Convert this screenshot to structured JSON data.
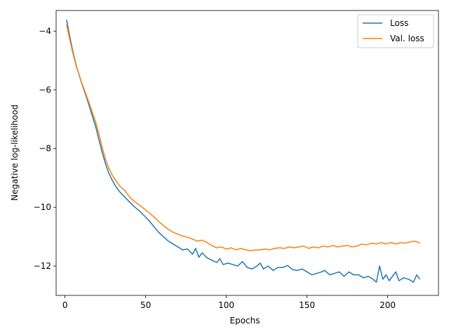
{
  "chart_data": {
    "type": "line",
    "title": "",
    "xlabel": "Epochs",
    "ylabel": "Negative log-likelihood",
    "xlim": [
      -5.5,
      231.5
    ],
    "ylim": [
      -13.0,
      -3.3
    ],
    "xticks": [
      0,
      50,
      100,
      150,
      200
    ],
    "yticks": [
      -12,
      -10,
      -8,
      -6,
      -4
    ],
    "grid": false,
    "legend_position": "top-right",
    "series": [
      {
        "name": "Loss",
        "color": "#1f77b4",
        "points": [
          [
            1,
            -3.62
          ],
          [
            3,
            -4.2
          ],
          [
            5,
            -4.72
          ],
          [
            7,
            -5.18
          ],
          [
            10,
            -5.72
          ],
          [
            13,
            -6.2
          ],
          [
            16,
            -6.72
          ],
          [
            19,
            -7.25
          ],
          [
            21,
            -7.7
          ],
          [
            23,
            -8.12
          ],
          [
            25,
            -8.5
          ],
          [
            27,
            -8.82
          ],
          [
            29,
            -9.05
          ],
          [
            31,
            -9.25
          ],
          [
            34,
            -9.48
          ],
          [
            37,
            -9.65
          ],
          [
            40,
            -9.82
          ],
          [
            43,
            -9.98
          ],
          [
            46,
            -10.12
          ],
          [
            49,
            -10.28
          ],
          [
            52,
            -10.45
          ],
          [
            55,
            -10.65
          ],
          [
            58,
            -10.85
          ],
          [
            61,
            -11.0
          ],
          [
            64,
            -11.15
          ],
          [
            67,
            -11.25
          ],
          [
            70,
            -11.35
          ],
          [
            73,
            -11.45
          ],
          [
            76,
            -11.42
          ],
          [
            79,
            -11.6
          ],
          [
            81,
            -11.4
          ],
          [
            83,
            -11.7
          ],
          [
            85,
            -11.55
          ],
          [
            88,
            -11.72
          ],
          [
            91,
            -11.8
          ],
          [
            94,
            -11.88
          ],
          [
            96,
            -11.75
          ],
          [
            98,
            -11.95
          ],
          [
            101,
            -11.9
          ],
          [
            104,
            -11.95
          ],
          [
            107,
            -12.0
          ],
          [
            110,
            -11.85
          ],
          [
            113,
            -12.05
          ],
          [
            116,
            -12.1
          ],
          [
            119,
            -12.0
          ],
          [
            121,
            -11.9
          ],
          [
            123,
            -12.1
          ],
          [
            126,
            -12.0
          ],
          [
            129,
            -12.15
          ],
          [
            132,
            -12.05
          ],
          [
            135,
            -12.05
          ],
          [
            138,
            -11.98
          ],
          [
            141,
            -12.12
          ],
          [
            144,
            -12.15
          ],
          [
            147,
            -12.1
          ],
          [
            150,
            -12.2
          ],
          [
            153,
            -12.3
          ],
          [
            156,
            -12.25
          ],
          [
            159,
            -12.2
          ],
          [
            161,
            -12.15
          ],
          [
            164,
            -12.3
          ],
          [
            167,
            -12.25
          ],
          [
            170,
            -12.2
          ],
          [
            173,
            -12.35
          ],
          [
            176,
            -12.2
          ],
          [
            179,
            -12.3
          ],
          [
            182,
            -12.3
          ],
          [
            185,
            -12.4
          ],
          [
            188,
            -12.35
          ],
          [
            191,
            -12.45
          ],
          [
            193,
            -12.55
          ],
          [
            195,
            -12.0
          ],
          [
            197,
            -12.45
          ],
          [
            199,
            -12.3
          ],
          [
            201,
            -12.5
          ],
          [
            203,
            -12.35
          ],
          [
            205,
            -12.2
          ],
          [
            207,
            -12.5
          ],
          [
            210,
            -12.4
          ],
          [
            213,
            -12.45
          ],
          [
            216,
            -12.55
          ],
          [
            218,
            -12.3
          ],
          [
            220,
            -12.45
          ]
        ]
      },
      {
        "name": "Val. loss",
        "color": "#ff7f0e",
        "points": [
          [
            1,
            -3.78
          ],
          [
            3,
            -4.3
          ],
          [
            5,
            -4.78
          ],
          [
            7,
            -5.2
          ],
          [
            10,
            -5.7
          ],
          [
            13,
            -6.15
          ],
          [
            16,
            -6.62
          ],
          [
            19,
            -7.1
          ],
          [
            21,
            -7.5
          ],
          [
            23,
            -7.95
          ],
          [
            25,
            -8.35
          ],
          [
            27,
            -8.65
          ],
          [
            29,
            -8.88
          ],
          [
            31,
            -9.05
          ],
          [
            34,
            -9.28
          ],
          [
            37,
            -9.42
          ],
          [
            40,
            -9.65
          ],
          [
            43,
            -9.8
          ],
          [
            46,
            -9.92
          ],
          [
            49,
            -10.05
          ],
          [
            52,
            -10.18
          ],
          [
            55,
            -10.32
          ],
          [
            58,
            -10.48
          ],
          [
            61,
            -10.62
          ],
          [
            64,
            -10.75
          ],
          [
            67,
            -10.85
          ],
          [
            70,
            -10.92
          ],
          [
            73,
            -10.98
          ],
          [
            76,
            -11.02
          ],
          [
            79,
            -11.08
          ],
          [
            82,
            -11.15
          ],
          [
            85,
            -11.12
          ],
          [
            88,
            -11.2
          ],
          [
            91,
            -11.3
          ],
          [
            94,
            -11.38
          ],
          [
            97,
            -11.35
          ],
          [
            100,
            -11.42
          ],
          [
            103,
            -11.38
          ],
          [
            106,
            -11.45
          ],
          [
            109,
            -11.4
          ],
          [
            112,
            -11.45
          ],
          [
            115,
            -11.48
          ],
          [
            118,
            -11.45
          ],
          [
            121,
            -11.45
          ],
          [
            124,
            -11.42
          ],
          [
            127,
            -11.45
          ],
          [
            130,
            -11.4
          ],
          [
            133,
            -11.38
          ],
          [
            136,
            -11.4
          ],
          [
            139,
            -11.35
          ],
          [
            142,
            -11.38
          ],
          [
            145,
            -11.35
          ],
          [
            148,
            -11.32
          ],
          [
            151,
            -11.4
          ],
          [
            154,
            -11.35
          ],
          [
            157,
            -11.38
          ],
          [
            160,
            -11.32
          ],
          [
            163,
            -11.35
          ],
          [
            166,
            -11.3
          ],
          [
            169,
            -11.35
          ],
          [
            172,
            -11.32
          ],
          [
            175,
            -11.3
          ],
          [
            178,
            -11.35
          ],
          [
            181,
            -11.32
          ],
          [
            184,
            -11.25
          ],
          [
            187,
            -11.28
          ],
          [
            190,
            -11.22
          ],
          [
            193,
            -11.25
          ],
          [
            196,
            -11.2
          ],
          [
            199,
            -11.25
          ],
          [
            202,
            -11.2
          ],
          [
            205,
            -11.25
          ],
          [
            208,
            -11.2
          ],
          [
            211,
            -11.22
          ],
          [
            214,
            -11.18
          ],
          [
            217,
            -11.15
          ],
          [
            220,
            -11.22
          ]
        ]
      }
    ]
  }
}
